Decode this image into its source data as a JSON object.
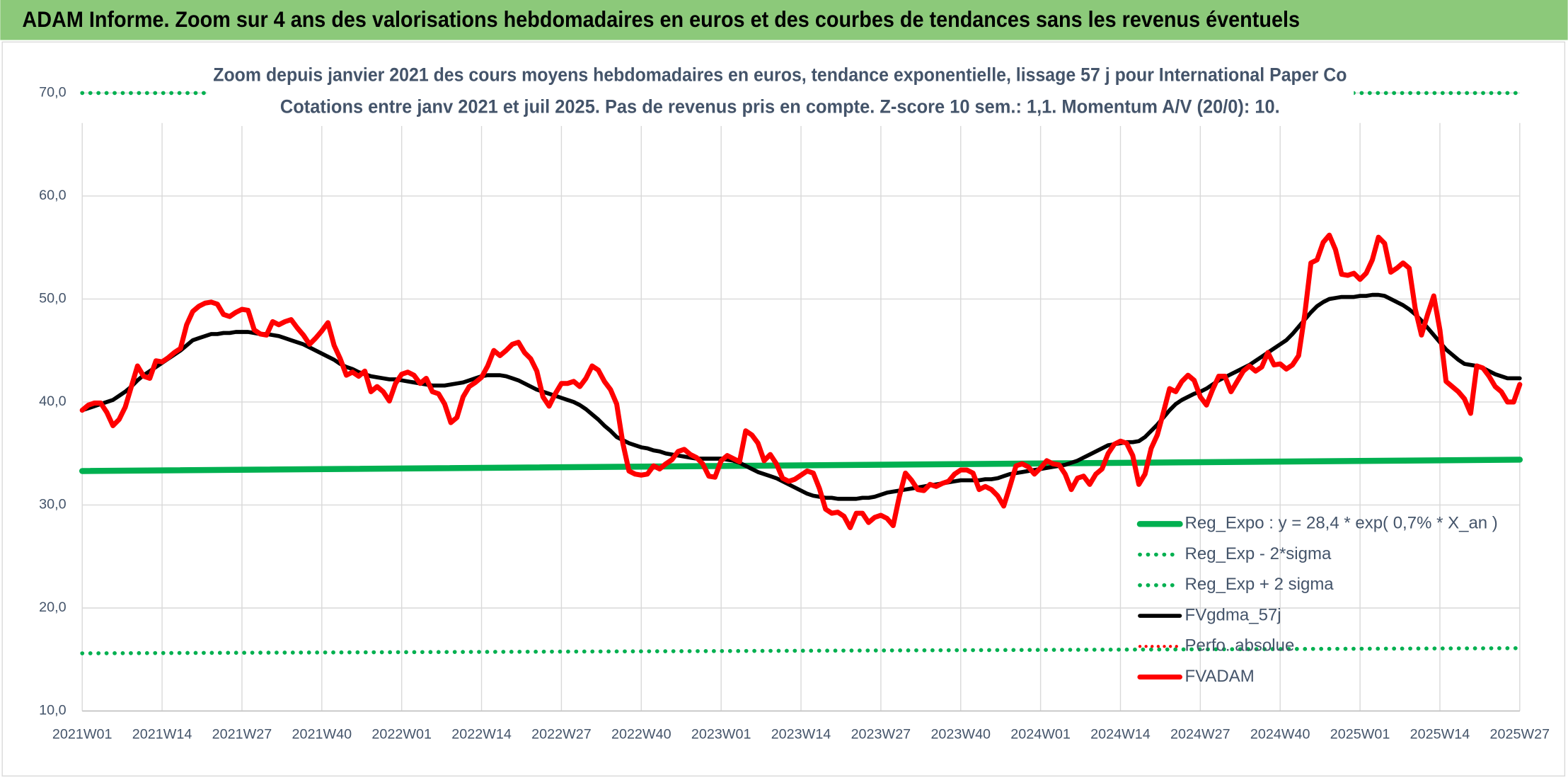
{
  "header": {
    "title": "ADAM Informe. Zoom sur 4 ans des valorisations hebdomadaires en euros et des courbes de tendances sans les revenus éventuels"
  },
  "chart_data": {
    "type": "line",
    "title": "Zoom depuis janvier 2021 des cours moyens hebdomadaires en euros, tendance exponentielle, lissage 57 j pour International Paper Co",
    "subtitle": "Cotations entre janv 2021 et juil 2025. Pas de revenus pris en compte. Z-score 10 sem.: 1,1. Momentum A/V (20/0): 10.",
    "grid": true,
    "legend": "lower right",
    "ylim": [
      10,
      70
    ],
    "yticks": [
      {
        "value": 10,
        "label": "10,0"
      },
      {
        "value": 20,
        "label": "20,0"
      },
      {
        "value": 30,
        "label": "30,0"
      },
      {
        "value": 40,
        "label": "40,0"
      },
      {
        "value": 50,
        "label": "50,0"
      },
      {
        "value": 60,
        "label": "60,0"
      },
      {
        "value": 70,
        "label": "70,0"
      }
    ],
    "categories": [
      "2021W01",
      null,
      null,
      null,
      null,
      null,
      null,
      null,
      null,
      null,
      null,
      null,
      null,
      "2021W14",
      null,
      null,
      null,
      null,
      null,
      null,
      null,
      null,
      null,
      null,
      null,
      null,
      "2021W27",
      null,
      null,
      null,
      null,
      null,
      null,
      null,
      null,
      null,
      null,
      null,
      null,
      "2021W40",
      null,
      null,
      null,
      null,
      null,
      null,
      null,
      null,
      null,
      null,
      null,
      null,
      "2022W01",
      null,
      null,
      null,
      null,
      null,
      null,
      null,
      null,
      null,
      null,
      null,
      null,
      "2022W14",
      null,
      null,
      null,
      null,
      null,
      null,
      null,
      null,
      null,
      null,
      null,
      null,
      "2022W27",
      null,
      null,
      null,
      null,
      null,
      null,
      null,
      null,
      null,
      null,
      null,
      null,
      "2022W40",
      null,
      null,
      null,
      null,
      null,
      null,
      null,
      null,
      null,
      null,
      null,
      null,
      "2023W01",
      null,
      null,
      null,
      null,
      null,
      null,
      null,
      null,
      null,
      null,
      null,
      null,
      "2023W14",
      null,
      null,
      null,
      null,
      null,
      null,
      null,
      null,
      null,
      null,
      null,
      null,
      "2023W27",
      null,
      null,
      null,
      null,
      null,
      null,
      null,
      null,
      null,
      null,
      null,
      null,
      "2023W40",
      null,
      null,
      null,
      null,
      null,
      null,
      null,
      null,
      null,
      null,
      null,
      null,
      "2024W01",
      null,
      null,
      null,
      null,
      null,
      null,
      null,
      null,
      null,
      null,
      null,
      null,
      "2024W14",
      null,
      null,
      null,
      null,
      null,
      null,
      null,
      null,
      null,
      null,
      null,
      null,
      "2024W27",
      null,
      null,
      null,
      null,
      null,
      null,
      null,
      null,
      null,
      null,
      null,
      null,
      "2024W40",
      null,
      null,
      null,
      null,
      null,
      null,
      null,
      null,
      null,
      null,
      null,
      null,
      "2025W01",
      null,
      null,
      null,
      null,
      null,
      null,
      null,
      null,
      null,
      null,
      null,
      null,
      "2025W14",
      null,
      null,
      null,
      null,
      null,
      null,
      null,
      null,
      null,
      null,
      null,
      null,
      "2025W27"
    ],
    "series": [
      {
        "name": "Reg_Expo : y = 28,4 * exp( 0,7% *  X_an )",
        "color": "#00b050",
        "style": "solid",
        "width": 6,
        "x": [
          "2021W01",
          "2025W27"
        ],
        "values": [
          33.3,
          34.4
        ]
      },
      {
        "name": "Reg_Exp - 2*sigma",
        "color": "#00b050",
        "style": "dotted",
        "width": 4,
        "x": [
          "2021W01",
          "2025W27"
        ],
        "values": [
          15.6,
          16.1
        ]
      },
      {
        "name": "Reg_Exp + 2 sigma",
        "color": "#00b050",
        "style": "dotted",
        "width": 4,
        "x": [
          "2021W01",
          "2025W27"
        ],
        "values": [
          70,
          70
        ]
      },
      {
        "name": "FVgdma_57j",
        "color": "#000000",
        "style": "solid",
        "width": 4,
        "values": [
          39.2,
          39.4,
          39.6,
          39.8,
          40.0,
          40.2,
          40.6,
          41.0,
          41.5,
          42.1,
          42.6,
          43.0,
          43.4,
          43.8,
          44.2,
          44.6,
          45.0,
          45.5,
          46.0,
          46.2,
          46.4,
          46.6,
          46.6,
          46.7,
          46.7,
          46.8,
          46.8,
          46.8,
          46.7,
          46.6,
          46.6,
          46.5,
          46.4,
          46.2,
          46.0,
          45.8,
          45.6,
          45.3,
          45.0,
          44.7,
          44.4,
          44.1,
          43.7,
          43.4,
          43.2,
          42.9,
          42.7,
          42.5,
          42.4,
          42.3,
          42.2,
          42.2,
          42.1,
          42.0,
          41.9,
          41.8,
          41.7,
          41.6,
          41.6,
          41.6,
          41.7,
          41.8,
          41.9,
          42.1,
          42.3,
          42.5,
          42.6,
          42.6,
          42.6,
          42.5,
          42.3,
          42.1,
          41.8,
          41.5,
          41.2,
          41.0,
          40.8,
          40.6,
          40.4,
          40.2,
          40.0,
          39.7,
          39.3,
          38.8,
          38.3,
          37.7,
          37.2,
          36.6,
          36.3,
          36.0,
          35.8,
          35.6,
          35.5,
          35.3,
          35.2,
          35.0,
          34.9,
          34.8,
          34.7,
          34.6,
          34.5,
          34.5,
          34.5,
          34.5,
          34.5,
          34.4,
          34.3,
          34.1,
          33.8,
          33.5,
          33.2,
          33.0,
          32.8,
          32.6,
          32.3,
          32.0,
          31.7,
          31.4,
          31.1,
          30.9,
          30.8,
          30.7,
          30.7,
          30.6,
          30.6,
          30.6,
          30.6,
          30.7,
          30.7,
          30.8,
          31.0,
          31.2,
          31.3,
          31.4,
          31.5,
          31.6,
          31.7,
          31.8,
          31.9,
          32.0,
          32.1,
          32.2,
          32.3,
          32.4,
          32.4,
          32.4,
          32.4,
          32.5,
          32.5,
          32.6,
          32.8,
          33.0,
          33.1,
          33.2,
          33.3,
          33.4,
          33.5,
          33.6,
          33.7,
          33.8,
          33.9,
          34.1,
          34.3,
          34.6,
          34.9,
          35.2,
          35.5,
          35.8,
          35.9,
          36.0,
          36.1,
          36.1,
          36.2,
          36.6,
          37.2,
          37.8,
          38.5,
          39.2,
          39.8,
          40.2,
          40.5,
          40.8,
          41.0,
          41.3,
          41.7,
          42.1,
          42.4,
          42.7,
          43.0,
          43.3,
          43.6,
          44.0,
          44.4,
          44.8,
          45.2,
          45.6,
          46.0,
          46.6,
          47.3,
          48.0,
          48.7,
          49.3,
          49.7,
          50.0,
          50.1,
          50.2,
          50.2,
          50.2,
          50.3,
          50.3,
          50.4,
          50.4,
          50.3,
          50.0,
          49.7,
          49.4,
          49.0,
          48.5,
          47.9,
          47.2,
          46.5,
          45.8,
          45.1,
          44.6,
          44.1,
          43.7,
          43.6,
          43.5,
          43.3,
          43.0,
          42.7,
          42.5,
          42.3,
          42.3,
          42.3
        ]
      },
      {
        "name": "Perfo. absolue",
        "color": "#ff0000",
        "style": "dotted",
        "width": 3,
        "x": [],
        "values": []
      },
      {
        "name": "FVADAM",
        "color": "#ff0000",
        "style": "solid",
        "width": 5,
        "values": [
          39.2,
          39.7,
          39.9,
          39.9,
          39.0,
          37.7,
          38.3,
          39.5,
          41.5,
          43.5,
          42.5,
          42.3,
          44.0,
          43.9,
          44.3,
          44.8,
          45.2,
          47.5,
          48.8,
          49.3,
          49.6,
          49.7,
          49.5,
          48.5,
          48.3,
          48.7,
          49.0,
          48.9,
          47.0,
          46.6,
          46.5,
          47.8,
          47.5,
          47.8,
          48.0,
          47.2,
          46.5,
          45.6,
          46.2,
          46.9,
          47.7,
          45.5,
          44.2,
          42.6,
          42.9,
          42.5,
          43.0,
          41.0,
          41.5,
          41.0,
          40.1,
          41.8,
          42.7,
          42.9,
          42.6,
          41.8,
          42.3,
          41.0,
          40.8,
          39.8,
          38.0,
          38.5,
          40.5,
          41.5,
          41.9,
          42.4,
          43.5,
          45.0,
          44.5,
          45.0,
          45.6,
          45.8,
          44.8,
          44.2,
          43.0,
          40.5,
          39.6,
          40.8,
          41.8,
          41.8,
          42.0,
          41.5,
          42.3,
          43.5,
          43.1,
          42.0,
          41.2,
          39.8,
          36.0,
          33.3,
          33.0,
          32.9,
          33.0,
          33.8,
          33.5,
          34.0,
          34.4,
          35.2,
          35.4,
          34.9,
          34.6,
          34.0,
          32.8,
          32.7,
          34.3,
          34.8,
          34.5,
          34.2,
          37.2,
          36.8,
          36.0,
          34.3,
          34.9,
          34.0,
          32.6,
          32.3,
          32.5,
          32.9,
          33.3,
          33.1,
          31.6,
          29.6,
          29.2,
          29.3,
          28.9,
          27.8,
          29.2,
          29.2,
          28.3,
          28.8,
          29.0,
          28.7,
          28.0,
          30.8,
          33.1,
          32.4,
          31.5,
          31.4,
          32.0,
          31.8,
          32.1,
          32.3,
          33.0,
          33.4,
          33.4,
          33.1,
          31.5,
          31.8,
          31.5,
          30.9,
          29.9,
          31.8,
          33.8,
          34.0,
          33.7,
          33.0,
          33.6,
          34.3,
          34.0,
          33.9,
          33.0,
          31.5,
          32.6,
          32.8,
          32.0,
          33.0,
          33.5,
          35.0,
          35.9,
          36.2,
          36.0,
          34.8,
          32.0,
          33.0,
          35.5,
          36.8,
          39.0,
          41.3,
          41.0,
          42.0,
          42.6,
          42.1,
          40.5,
          39.7,
          41.2,
          42.5,
          42.5,
          41.0,
          42.0,
          43.0,
          43.5,
          43.0,
          43.4,
          44.8,
          43.6,
          43.7,
          43.2,
          43.6,
          44.5,
          48.5,
          53.5,
          53.8,
          55.5,
          56.2,
          54.8,
          52.4,
          52.3,
          52.5,
          51.9,
          52.5,
          53.8,
          56.0,
          55.4,
          52.6,
          53.0,
          53.5,
          53.0,
          49.0,
          46.5,
          48.5,
          50.3,
          47.0,
          42.0,
          41.5,
          41.0,
          40.3,
          38.9,
          43.5,
          43.3,
          42.5,
          41.5,
          41.0,
          40.0,
          40.0,
          41.7
        ]
      }
    ]
  }
}
